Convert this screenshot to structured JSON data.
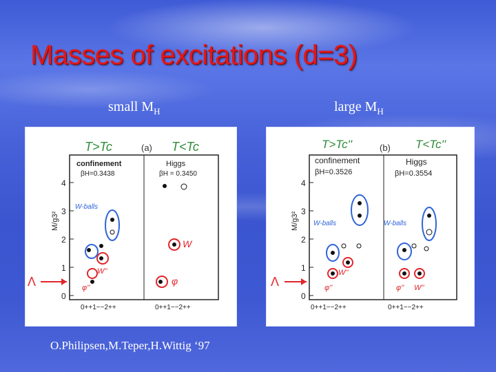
{
  "slide": {
    "title": "Masses of excitations (d=3)",
    "left_label": {
      "main": "small M",
      "sub": "H"
    },
    "right_label": {
      "main": "large  M",
      "sub": "H"
    },
    "citation": "O.Philipsen,M.Teper,H.Wittig ‘97"
  },
  "left_plot": {
    "header_left": "T>Tc",
    "header_right": "T<Tc",
    "panel_tag": "(a)",
    "conf_label": "confinement",
    "conf_beta": "βH=0.3438",
    "higgs_label": "Higgs",
    "higgs_beta": "βH = 0.3450",
    "ylabel": "M/g3²",
    "y_ticks": [
      "0",
      "1",
      "2",
      "3",
      "4"
    ],
    "x_ticks": [
      "0++1−−2++",
      "0++1−−2++"
    ],
    "anno_wballs": "W-balls",
    "anno_phi": "φ''",
    "anno_w": "W''",
    "anno_w2": "W",
    "anno_phi2": "φ",
    "anno_lambda": "Λ"
  },
  "right_plot": {
    "header_left": "T>Tc''",
    "header_right": "T<Tc''",
    "panel_tag": "(b)",
    "conf_label": "confinement",
    "conf_beta": "βH=0.3526",
    "higgs_label": "Higgs",
    "higgs_beta": "βH=0.3554",
    "ylabel": "M/g3²",
    "y_ticks": [
      "0",
      "1",
      "2",
      "3",
      "4"
    ],
    "x_ticks": [
      "0++1−−2++",
      "0++1−−2++"
    ],
    "anno_wballs": "W-balls",
    "anno_wballs2": "W-balls",
    "anno_phi": "φ''",
    "anno_w": "W''",
    "anno_phi2": "φ''",
    "anno_w2": "W''",
    "anno_lambda": "Λ"
  },
  "colors": {
    "title": "#e0181a",
    "annotation": "#e0262a",
    "blue_ring": "#2f63d8",
    "axes": "#222222"
  }
}
